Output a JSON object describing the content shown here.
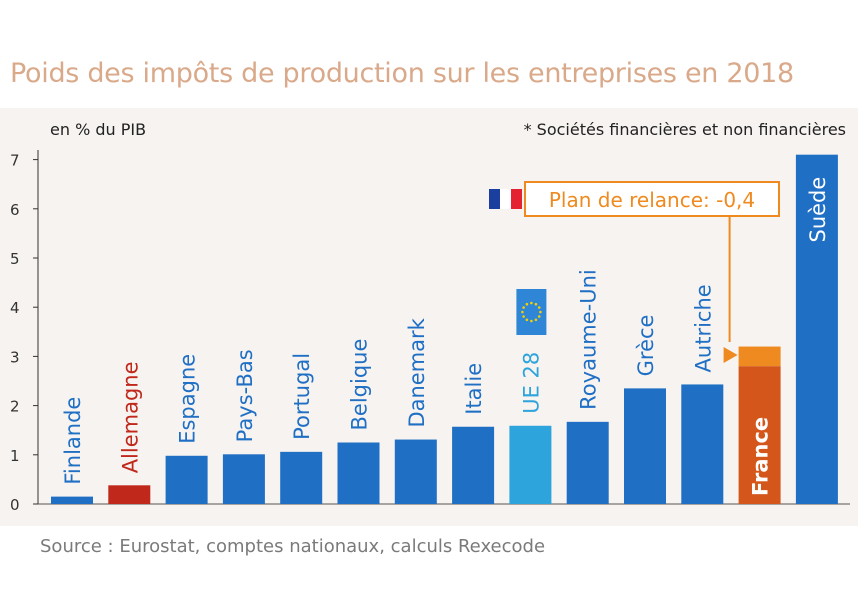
{
  "title": "Poids des impôts de production sur les entreprises en 2018",
  "source": "Source : Eurostat, comptes nationaux, calculs Rexecode",
  "colors": {
    "bar": "#1f6fc5",
    "highlight_red": "#c0281b",
    "eu": "#2ea4dc",
    "france": "#d4561b",
    "relance": "#ee8a1f",
    "panel": "#f6f3f0",
    "title": "#d9a98a"
  },
  "icons": {
    "france_flag": "flag-france-icon",
    "eu_flag": "flag-eu-icon"
  },
  "chart_data": {
    "type": "bar",
    "ylabel": "en % du PIB",
    "note": "* Sociétés financières et non financières",
    "ylim": [
      0,
      7.3
    ],
    "yticks": [
      0,
      1,
      2,
      3,
      4,
      5,
      6,
      7
    ],
    "grid": false,
    "categories": [
      "Finlande",
      "Allemagne",
      "Espagne",
      "Pays-Bas",
      "Portugal",
      "Belgique",
      "Danemark",
      "Italie",
      "UE 28",
      "Royaume-Uni",
      "Grèce",
      "Autriche",
      "France",
      "Suède"
    ],
    "values": [
      0.15,
      0.38,
      0.98,
      1.01,
      1.06,
      1.25,
      1.31,
      1.57,
      1.59,
      1.67,
      2.35,
      2.43,
      3.2,
      7.1
    ],
    "bar_colors": [
      "#1f6fc5",
      "#c0281b",
      "#1f6fc5",
      "#1f6fc5",
      "#1f6fc5",
      "#1f6fc5",
      "#1f6fc5",
      "#1f6fc5",
      "#2ea4dc",
      "#1f6fc5",
      "#1f6fc5",
      "#1f6fc5",
      "#d4561b",
      "#1f6fc5"
    ],
    "label_colors": [
      "#1f6fc5",
      "#c0281b",
      "#1f6fc5",
      "#1f6fc5",
      "#1f6fc5",
      "#1f6fc5",
      "#1f6fc5",
      "#1f6fc5",
      "#2ea4dc",
      "#1f6fc5",
      "#1f6fc5",
      "#1f6fc5",
      "#ffffff",
      "#ffffff"
    ],
    "relance": {
      "category": "France",
      "label": "Plan de relance: -0,4",
      "after_value": 2.8,
      "reduction": 0.4
    }
  }
}
